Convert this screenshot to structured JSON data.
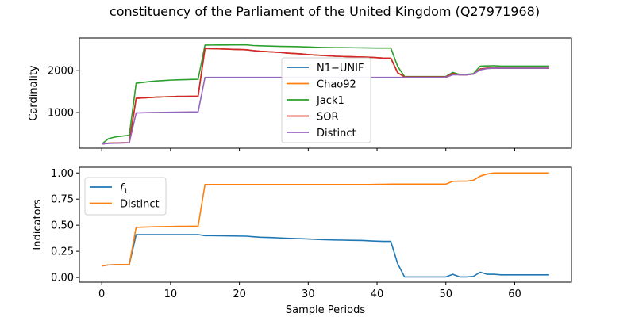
{
  "figure": {
    "title": "constituency of the Parliament of the United Kingdom (Q27971968)"
  },
  "chart_data": [
    {
      "type": "line",
      "panel": "top",
      "xlabel": "",
      "ylabel": "Cardinality",
      "xlim": [
        -3.25,
        68.25
      ],
      "ylim": [
        150,
        2780
      ],
      "yticks": [
        1000,
        2000
      ],
      "xticks": [
        0,
        10,
        20,
        30,
        40,
        50,
        60
      ],
      "show_xtick_labels": false,
      "grid": false,
      "legend": "center",
      "x": [
        0,
        1,
        2,
        3,
        4,
        5,
        6,
        7,
        8,
        9,
        10,
        11,
        12,
        13,
        14,
        15,
        16,
        17,
        18,
        19,
        20,
        21,
        22,
        23,
        24,
        25,
        26,
        27,
        28,
        29,
        30,
        31,
        32,
        33,
        34,
        35,
        36,
        37,
        38,
        39,
        40,
        41,
        42,
        43,
        44,
        45,
        46,
        47,
        48,
        49,
        50,
        51,
        52,
        53,
        54,
        55,
        56,
        57,
        58,
        59,
        60,
        61,
        62,
        63,
        64,
        65
      ],
      "series": [
        {
          "name": "N1−UNIF",
          "color": "#1f77b4",
          "values": [
            250,
            270,
            275,
            280,
            280,
            1340,
            1350,
            1360,
            1370,
            1375,
            1380,
            1385,
            1385,
            1388,
            1390,
            2530,
            2525,
            2520,
            2515,
            2510,
            2505,
            2500,
            2480,
            2465,
            2455,
            2445,
            2435,
            2420,
            2410,
            2400,
            2385,
            2375,
            2365,
            2355,
            2345,
            2340,
            2335,
            2330,
            2325,
            2320,
            2310,
            2300,
            2300,
            1950,
            1850,
            1850,
            1850,
            1850,
            1850,
            1850,
            1850,
            1930,
            1900,
            1900,
            1920,
            2040,
            2060,
            2060,
            2060,
            2060,
            2060,
            2060,
            2060,
            2060,
            2060,
            2060
          ]
        },
        {
          "name": "Chao92",
          "color": "#ff7f0e",
          "values": [
            250,
            270,
            275,
            280,
            280,
            1340,
            1350,
            1360,
            1370,
            1375,
            1380,
            1385,
            1385,
            1388,
            1390,
            2530,
            2525,
            2520,
            2515,
            2510,
            2505,
            2500,
            2480,
            2465,
            2455,
            2445,
            2435,
            2420,
            2410,
            2400,
            2385,
            2375,
            2365,
            2355,
            2345,
            2340,
            2335,
            2330,
            2325,
            2320,
            2310,
            2300,
            2300,
            1950,
            1850,
            1850,
            1850,
            1850,
            1850,
            1850,
            1850,
            1930,
            1900,
            1900,
            1920,
            2040,
            2060,
            2060,
            2060,
            2060,
            2060,
            2060,
            2060,
            2060,
            2060,
            2060
          ]
        },
        {
          "name": "Jack1",
          "color": "#2ca02c",
          "values": [
            250,
            380,
            420,
            440,
            460,
            1700,
            1720,
            1740,
            1755,
            1765,
            1775,
            1780,
            1785,
            1790,
            1795,
            2610,
            2612,
            2613,
            2614,
            2615,
            2616,
            2617,
            2600,
            2595,
            2590,
            2585,
            2580,
            2578,
            2575,
            2570,
            2565,
            2560,
            2555,
            2553,
            2550,
            2550,
            2548,
            2546,
            2544,
            2542,
            2540,
            2540,
            2540,
            2100,
            1860,
            1860,
            1860,
            1860,
            1860,
            1860,
            1860,
            1960,
            1910,
            1910,
            1930,
            2110,
            2115,
            2120,
            2110,
            2110,
            2110,
            2110,
            2110,
            2110,
            2110,
            2110
          ]
        },
        {
          "name": "SOR",
          "color": "#d62728",
          "values": [
            250,
            270,
            275,
            280,
            280,
            1340,
            1350,
            1360,
            1370,
            1375,
            1380,
            1385,
            1385,
            1388,
            1390,
            2530,
            2525,
            2520,
            2515,
            2510,
            2505,
            2500,
            2480,
            2465,
            2455,
            2445,
            2435,
            2420,
            2410,
            2400,
            2385,
            2375,
            2365,
            2355,
            2345,
            2340,
            2335,
            2330,
            2325,
            2320,
            2310,
            2300,
            2300,
            1950,
            1850,
            1850,
            1850,
            1850,
            1850,
            1850,
            1850,
            1930,
            1900,
            1900,
            1920,
            2040,
            2060,
            2060,
            2060,
            2060,
            2060,
            2060,
            2060,
            2060,
            2060,
            2060
          ]
        },
        {
          "name": "Distinct",
          "color": "#9467bd",
          "values": [
            250,
            265,
            270,
            275,
            280,
            990,
            995,
            1000,
            1003,
            1005,
            1008,
            1010,
            1012,
            1014,
            1015,
            1840,
            1840,
            1840,
            1840,
            1840,
            1840,
            1840,
            1840,
            1840,
            1840,
            1840,
            1840,
            1840,
            1840,
            1840,
            1840,
            1840,
            1840,
            1840,
            1840,
            1840,
            1840,
            1840,
            1840,
            1840,
            1840,
            1840,
            1840,
            1840,
            1840,
            1840,
            1840,
            1840,
            1840,
            1840,
            1840,
            1900,
            1900,
            1900,
            1920,
            2020,
            2050,
            2060,
            2060,
            2060,
            2060,
            2060,
            2060,
            2060,
            2060,
            2060
          ]
        }
      ]
    },
    {
      "type": "line",
      "panel": "bottom",
      "xlabel": "Sample Periods",
      "ylabel": "Indicators",
      "xlim": [
        -3.25,
        68.25
      ],
      "ylim": [
        -0.045,
        1.055
      ],
      "yticks": [
        0.0,
        0.25,
        0.5,
        0.75,
        1.0
      ],
      "ytick_labels": [
        "0.00",
        "0.25",
        "0.50",
        "0.75",
        "1.00"
      ],
      "xticks": [
        0,
        10,
        20,
        30,
        40,
        50,
        60
      ],
      "xtick_labels": [
        "0",
        "10",
        "20",
        "30",
        "40",
        "50",
        "60"
      ],
      "grid": false,
      "legend": "upper-left",
      "x": [
        0,
        1,
        2,
        3,
        4,
        5,
        6,
        7,
        8,
        9,
        10,
        11,
        12,
        13,
        14,
        15,
        16,
        17,
        18,
        19,
        20,
        21,
        22,
        23,
        24,
        25,
        26,
        27,
        28,
        29,
        30,
        31,
        32,
        33,
        34,
        35,
        36,
        37,
        38,
        39,
        40,
        41,
        42,
        43,
        44,
        45,
        46,
        47,
        48,
        49,
        50,
        51,
        52,
        53,
        54,
        55,
        56,
        57,
        58,
        59,
        60,
        61,
        62,
        63,
        64,
        65
      ],
      "series": [
        {
          "name": "f",
          "name_sub": "1",
          "color": "#1f77b4",
          "values": [
            0.11,
            0.12,
            0.122,
            0.123,
            0.124,
            0.41,
            0.41,
            0.41,
            0.41,
            0.41,
            0.41,
            0.41,
            0.41,
            0.41,
            0.41,
            0.4,
            0.4,
            0.399,
            0.398,
            0.397,
            0.396,
            0.395,
            0.39,
            0.385,
            0.383,
            0.381,
            0.378,
            0.375,
            0.373,
            0.371,
            0.368,
            0.365,
            0.362,
            0.36,
            0.358,
            0.357,
            0.356,
            0.355,
            0.354,
            0.35,
            0.347,
            0.345,
            0.345,
            0.13,
            0.005,
            0.005,
            0.005,
            0.005,
            0.005,
            0.005,
            0.005,
            0.03,
            0.005,
            0.005,
            0.01,
            0.05,
            0.03,
            0.03,
            0.025,
            0.025,
            0.025,
            0.025,
            0.025,
            0.025,
            0.025,
            0.025
          ]
        },
        {
          "name": "Distinct",
          "color": "#ff7f0e",
          "values": [
            0.11,
            0.12,
            0.122,
            0.123,
            0.124,
            0.48,
            0.482,
            0.484,
            0.486,
            0.487,
            0.488,
            0.489,
            0.489,
            0.49,
            0.49,
            0.89,
            0.89,
            0.89,
            0.89,
            0.89,
            0.89,
            0.89,
            0.89,
            0.89,
            0.89,
            0.89,
            0.89,
            0.89,
            0.89,
            0.89,
            0.89,
            0.89,
            0.89,
            0.89,
            0.89,
            0.89,
            0.89,
            0.89,
            0.89,
            0.89,
            0.892,
            0.892,
            0.893,
            0.893,
            0.893,
            0.893,
            0.893,
            0.893,
            0.893,
            0.893,
            0.893,
            0.92,
            0.922,
            0.922,
            0.93,
            0.97,
            0.99,
            1.0,
            1.0,
            1.0,
            1.0,
            1.0,
            1.0,
            1.0,
            1.0,
            1.0
          ]
        }
      ]
    }
  ]
}
